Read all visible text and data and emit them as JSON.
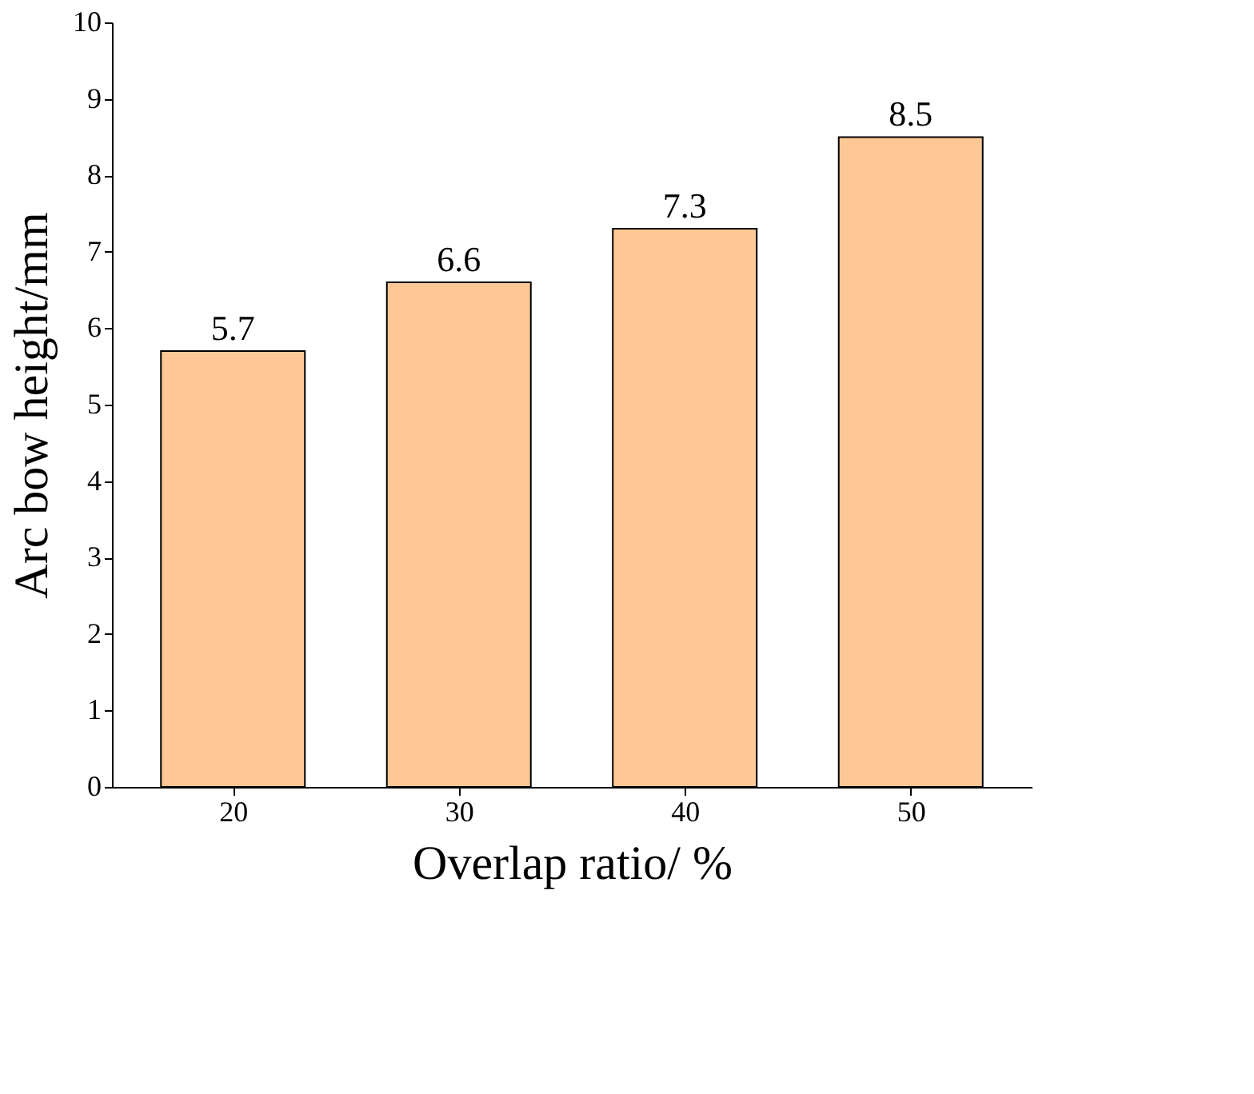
{
  "chart_data": {
    "type": "bar",
    "xlabel": "Overlap ratio/ %",
    "ylabel": "Arc bow height/mm",
    "categories": [
      "20",
      "30",
      "40",
      "50"
    ],
    "values": [
      5.7,
      6.6,
      7.3,
      8.5
    ],
    "color": "#fdc896",
    "ylim": [
      0,
      10
    ],
    "yticks": [
      0,
      1,
      2,
      3,
      4,
      5,
      6,
      7,
      8,
      9,
      10
    ],
    "data_labels": true
  }
}
